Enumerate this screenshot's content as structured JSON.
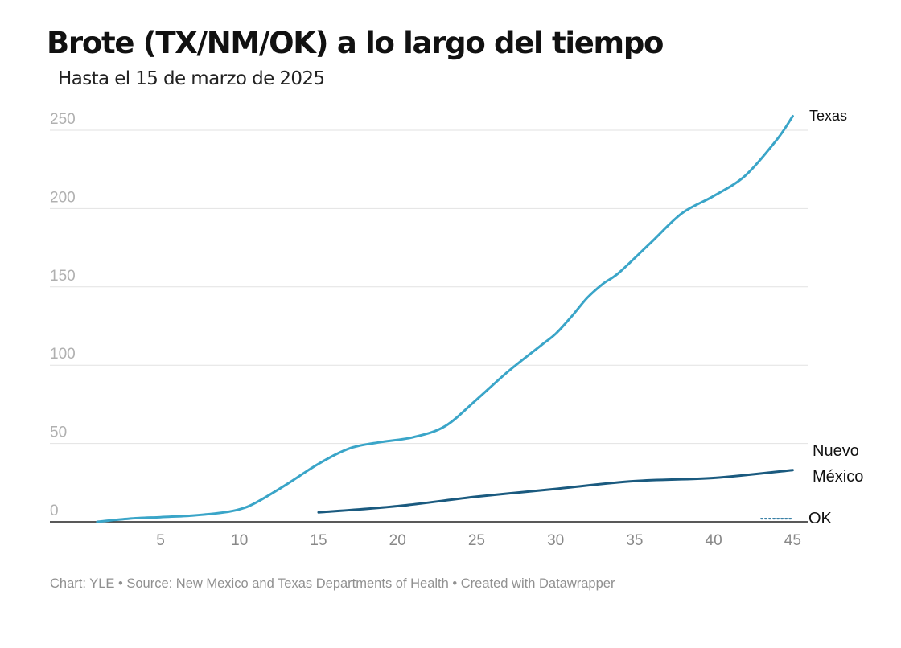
{
  "title": "Brote (TX/NM/OK) a lo largo del tiempo",
  "subtitle": "Hasta el 15 de marzo de 2025",
  "footer": "Chart: YLE • Source: New Mexico and Texas Departments of Health • Created with Datawrapper",
  "colors": {
    "texas": "#3aa5c8",
    "nuevo_mexico": "#1a5a7f",
    "ok": "#1f6f99",
    "grid": "#e2e2e2",
    "axis": "#222222",
    "y_tick": "#b0b0b0",
    "x_tick": "#888888"
  },
  "chart_data": {
    "type": "line",
    "xlim": [
      -2,
      46
    ],
    "ylim": [
      0,
      250
    ],
    "x_ticks": [
      5,
      10,
      15,
      20,
      25,
      30,
      35,
      40,
      45
    ],
    "y_ticks": [
      0,
      50,
      100,
      150,
      200,
      250
    ],
    "grid": "horizontal",
    "legend": "direct labels at line ends",
    "series": [
      {
        "name": "Texas",
        "label_lines": [
          "Texas"
        ],
        "style": "solid",
        "x": [
          1,
          3,
          5,
          7,
          9,
          10,
          11,
          13,
          15,
          17,
          19,
          21,
          23,
          25,
          27,
          29,
          30,
          31,
          32,
          33,
          34,
          36,
          38,
          40,
          42,
          44,
          45
        ],
        "y": [
          0,
          2,
          3,
          4,
          6,
          8,
          12,
          24,
          37,
          47,
          51,
          54,
          61,
          78,
          96,
          112,
          120,
          131,
          143,
          152,
          159,
          178,
          197,
          208,
          221,
          244,
          259
        ]
      },
      {
        "name": "Nuevo México",
        "label_lines": [
          "Nuevo",
          "México"
        ],
        "style": "solid",
        "x": [
          15,
          20,
          25,
          30,
          35,
          40,
          45
        ],
        "y": [
          6,
          10,
          16,
          21,
          26,
          28,
          33
        ]
      },
      {
        "name": "OK",
        "label_lines": [
          "OK"
        ],
        "style": "dotted",
        "x": [
          43,
          45
        ],
        "y": [
          2,
          2
        ]
      }
    ]
  }
}
